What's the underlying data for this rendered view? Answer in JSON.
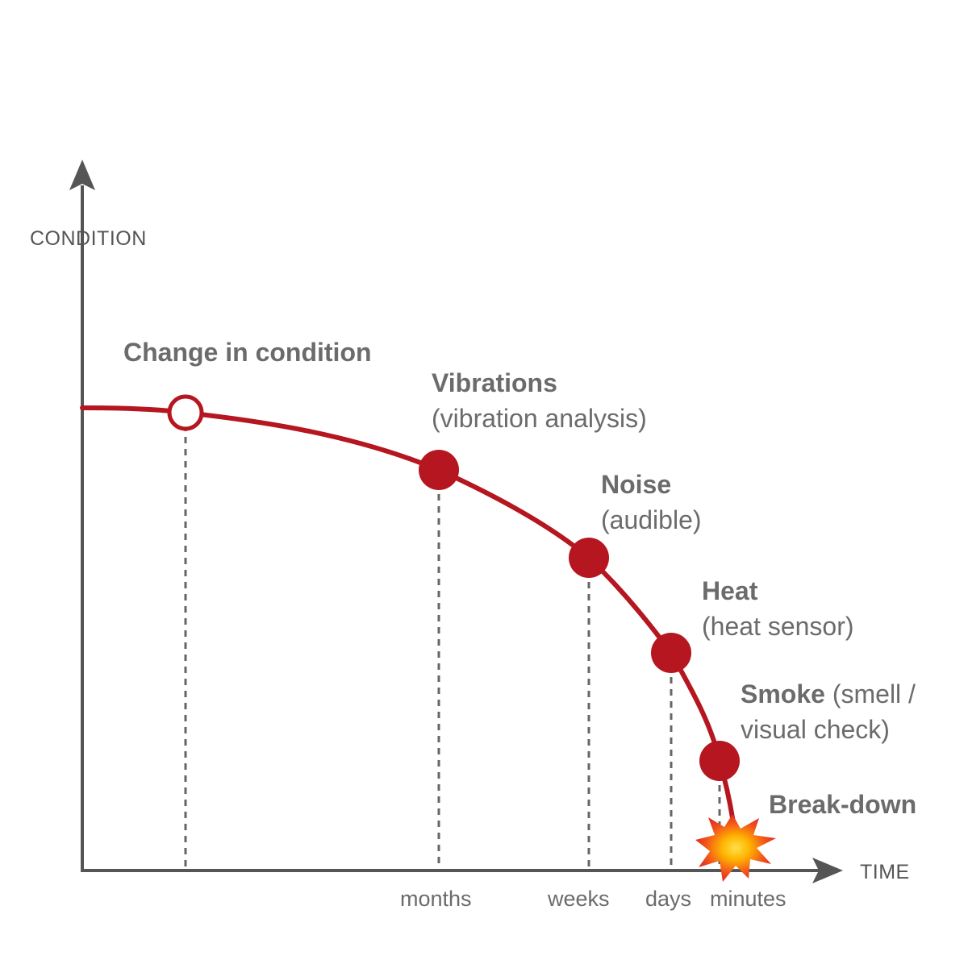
{
  "axes": {
    "y_label": "CONDITION",
    "x_label": "TIME"
  },
  "colors": {
    "curve": "#b5161f",
    "axis": "#555555",
    "text": "#6b6b6b",
    "guide": "#666666"
  },
  "ticks": [
    "months",
    "weeks",
    "days",
    "minutes"
  ],
  "stages": [
    {
      "id": "change",
      "title": "Change in condition",
      "subtitle": "",
      "marker": "hollow"
    },
    {
      "id": "vibrations",
      "title": "Vibrations",
      "subtitle": "(vibration analysis)",
      "marker": "filled"
    },
    {
      "id": "noise",
      "title": "Noise",
      "subtitle": "(audible)",
      "marker": "filled"
    },
    {
      "id": "heat",
      "title": "Heat",
      "subtitle": "(heat sensor)",
      "marker": "filled"
    },
    {
      "id": "smoke",
      "title": "Smoke",
      "subtitle": " (smell /",
      "subtitle2": "visual check)",
      "marker": "filled"
    },
    {
      "id": "breakdown",
      "title": "Break-down",
      "subtitle": "",
      "marker": "burst"
    }
  ]
}
